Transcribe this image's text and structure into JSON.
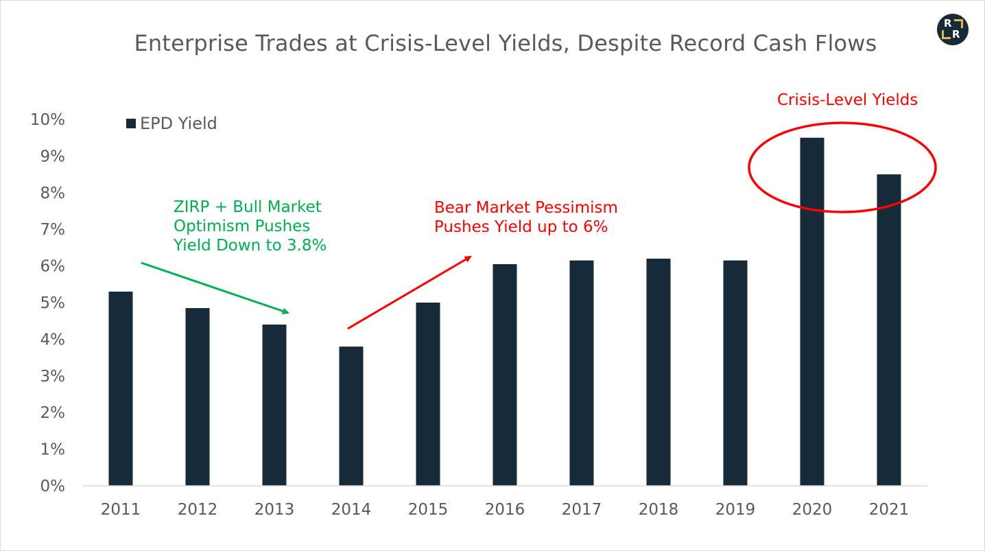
{
  "chart_data": {
    "type": "bar",
    "title": "Enterprise Trades at Crisis-Level Yields, Despite Record Cash Flows",
    "categories": [
      "2011",
      "2012",
      "2013",
      "2014",
      "2015",
      "2016",
      "2017",
      "2018",
      "2019",
      "2020",
      "2021"
    ],
    "series": [
      {
        "name": "EPD Yield",
        "values": [
          5.3,
          4.85,
          4.4,
          3.8,
          5.0,
          6.05,
          6.15,
          6.2,
          6.15,
          9.5,
          8.5
        ]
      }
    ],
    "y_ticks": [
      "0%",
      "1%",
      "2%",
      "3%",
      "4%",
      "5%",
      "6%",
      "7%",
      "8%",
      "9%",
      "10%"
    ],
    "ylim": [
      0,
      10
    ],
    "y_unit": "%",
    "grid": false,
    "legend_position": "top-left",
    "bar_color": "#172a3a",
    "annotations": [
      {
        "text": "ZIRP + Bull Market\nOptimism Pushes\nYield Down to 3.8%",
        "color": "#00b050"
      },
      {
        "text": "Bear Market Pessimism\nPushes Yield up to 6%",
        "color": "#ff0000"
      },
      {
        "text": "Crisis-Level Yields",
        "color": "#ff0000"
      }
    ]
  },
  "logo": {
    "letters": [
      "R",
      "R"
    ],
    "accent_color": "#e0b84c",
    "background_color": "#172a3a"
  }
}
